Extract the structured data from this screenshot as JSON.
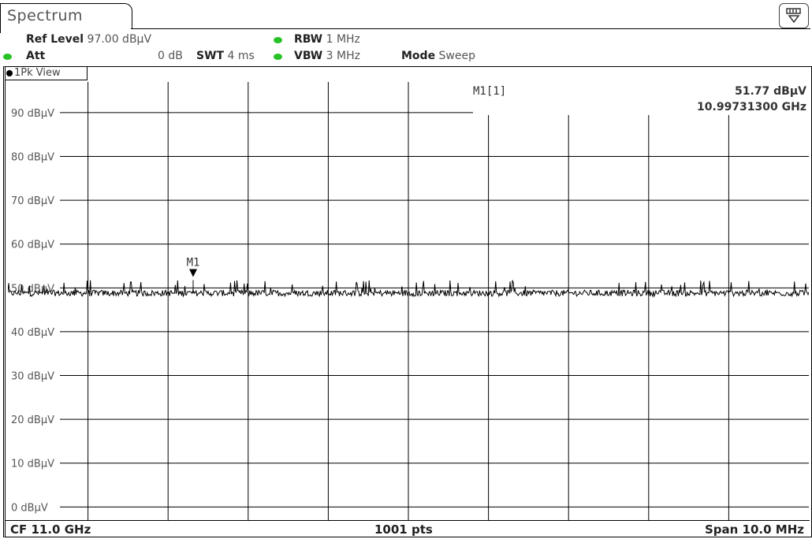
{
  "tab": {
    "label": "Spectrum"
  },
  "settings": {
    "ref_level_label": "Ref Level",
    "ref_level_value": "97.00 dBµV",
    "att_label": "Att",
    "att_value": "0 dB",
    "swt_label": "SWT",
    "swt_value": "4 ms",
    "rbw_label": "RBW",
    "rbw_value": "1 MHz",
    "vbw_label": "VBW",
    "vbw_value": "3 MHz",
    "mode_label": "Mode",
    "mode_value": "Sweep"
  },
  "colors": {
    "led": "#28c228",
    "trace": "#000000",
    "grid": "#000000"
  },
  "view": {
    "label": "1Pk View"
  },
  "marker": {
    "name": "M1",
    "readout_label": "M1[1]",
    "level": "51.77 dBµV",
    "frequency": "10.99731300 GHz"
  },
  "footer": {
    "center": "CF 11.0 GHz",
    "points": "1001 pts",
    "span": "Span 10.0 MHz"
  },
  "chart_data": {
    "type": "line",
    "x_axis": {
      "center_ghz": 11.0,
      "span_mhz": 10.0,
      "start_ghz": 10.995,
      "stop_ghz": 11.005,
      "points": 1001,
      "divisions": 10
    },
    "y_axis": {
      "unit": "dBµV",
      "ylim": [
        -3,
        97
      ],
      "tick_values": [
        90,
        80,
        70,
        60,
        50,
        40,
        30,
        20,
        10,
        0
      ],
      "tick_labels": [
        "90 dBµV",
        "80 dBµV",
        "70 dBµV",
        "60 dBµV",
        "50 dBµV",
        "40 dBµV",
        "30 dBµV",
        "20 dBµV",
        "10 dBµV",
        "0 dBµV"
      ]
    },
    "trace": {
      "name": "1Pk",
      "noise_floor_dbuv": 48.8,
      "noise_peak_dbuv": 51.8,
      "description_level": "flat noise floor"
    },
    "marker_point": {
      "x_ghz": 10.997313,
      "y_dbuv": 51.77
    },
    "grid": true
  }
}
